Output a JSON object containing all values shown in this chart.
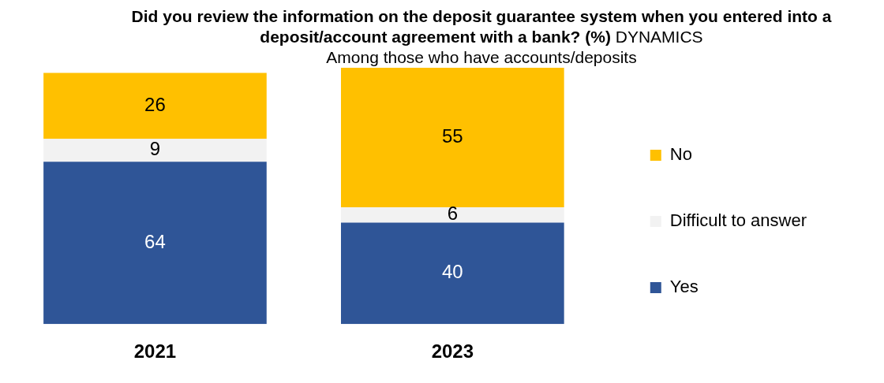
{
  "chart_data": {
    "type": "bar",
    "title": "Did you review the information on the deposit guarantee system when you entered into a deposit/account agreement with a bank? (%)",
    "subtitle": "DYNAMICS",
    "annotations": [
      "Among those who have accounts/deposits"
    ],
    "categories": [
      "2021",
      "2023"
    ],
    "stacked": true,
    "data_labels": true,
    "legend": "right",
    "grid": false,
    "series": [
      {
        "name": "Yes",
        "color": "#2f5597",
        "values": [
          64,
          40
        ]
      },
      {
        "name": "Difficult to answer",
        "color": "#f2f2f2",
        "values": [
          9,
          6
        ]
      },
      {
        "name": "No",
        "color": "#ffc000",
        "values": [
          26,
          55
        ]
      }
    ]
  }
}
